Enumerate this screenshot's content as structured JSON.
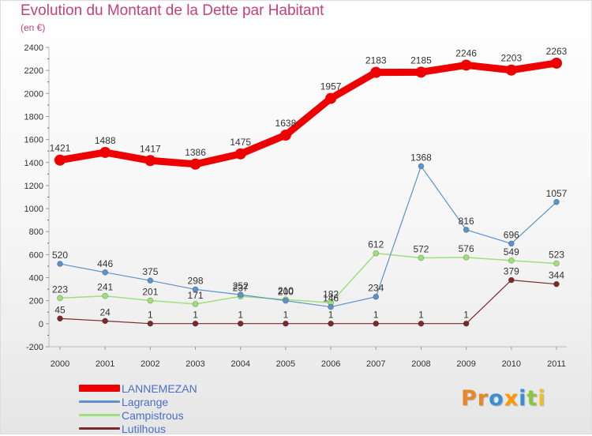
{
  "title": "Evolution du Montant de la Dette par Habitant",
  "subtitle": "(en €)",
  "logo": {
    "text": "Proxiti",
    "letters": [
      "P",
      "r",
      "o",
      "x",
      "i",
      "t",
      "i"
    ],
    "colors": [
      "#e8862a",
      "#e8862a",
      "#3a8fd4",
      "#ff9900",
      "#3a8fd4",
      "#8cc63f",
      "#e8c02a"
    ]
  },
  "chart_data": {
    "type": "line",
    "x": [
      "2000",
      "2001",
      "2002",
      "2003",
      "2004",
      "2005",
      "2006",
      "2007",
      "2008",
      "2009",
      "2010",
      "2011"
    ],
    "ylim": [
      -200,
      2400
    ],
    "yticks": [
      -200,
      0,
      200,
      400,
      600,
      800,
      1000,
      1200,
      1400,
      1600,
      1800,
      2000,
      2200,
      2400
    ],
    "grid": false,
    "legend_position": "bottom-left",
    "series": [
      {
        "name": "LANNEMEZAN",
        "color": "#ee0000",
        "width": 9,
        "marker": 7,
        "values": [
          1421,
          1488,
          1417,
          1386,
          1475,
          1638,
          1957,
          2183,
          2185,
          2246,
          2203,
          2263
        ]
      },
      {
        "name": "Lagrange",
        "color": "#5b93c8",
        "width": 1.2,
        "marker": 3.5,
        "values": [
          520,
          446,
          375,
          298,
          252,
          200,
          146,
          234,
          1368,
          816,
          696,
          1057
        ]
      },
      {
        "name": "Campistrous",
        "color": "#9ee07a",
        "width": 1.5,
        "marker": 3.5,
        "values": [
          223,
          241,
          201,
          171,
          237,
          210,
          182,
          612,
          572,
          576,
          549,
          523
        ]
      },
      {
        "name": "Lutilhous",
        "color": "#7a2a2a",
        "width": 1.2,
        "marker": 3.5,
        "values": [
          45,
          24,
          1,
          1,
          1,
          1,
          1,
          1,
          1,
          1,
          379,
          344
        ]
      }
    ]
  }
}
